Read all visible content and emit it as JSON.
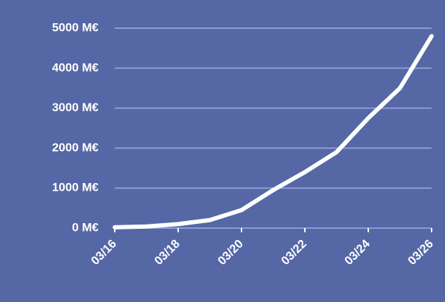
{
  "chart_data": {
    "type": "line",
    "categories": [
      "03/16",
      null,
      "03/18",
      null,
      "03/20",
      null,
      "03/22",
      null,
      "03/24",
      null,
      "03/26"
    ],
    "series": [
      {
        "color": "#ffffff",
        "values": [
          20,
          40,
          100,
          200,
          450,
          950,
          1400,
          1900,
          2750,
          3500,
          4800
        ]
      }
    ],
    "ylim": [
      0,
      5000
    ],
    "yticks": [
      {
        "value": 0,
        "label": "0 M€"
      },
      {
        "value": 1000,
        "label": "1000 M€"
      },
      {
        "value": 2000,
        "label": "2000 M€"
      },
      {
        "value": 3000,
        "label": "3000 M€"
      },
      {
        "value": 4000,
        "label": "4000 M€"
      },
      {
        "value": 5000,
        "label": "5000 M€"
      }
    ],
    "grid": true
  }
}
